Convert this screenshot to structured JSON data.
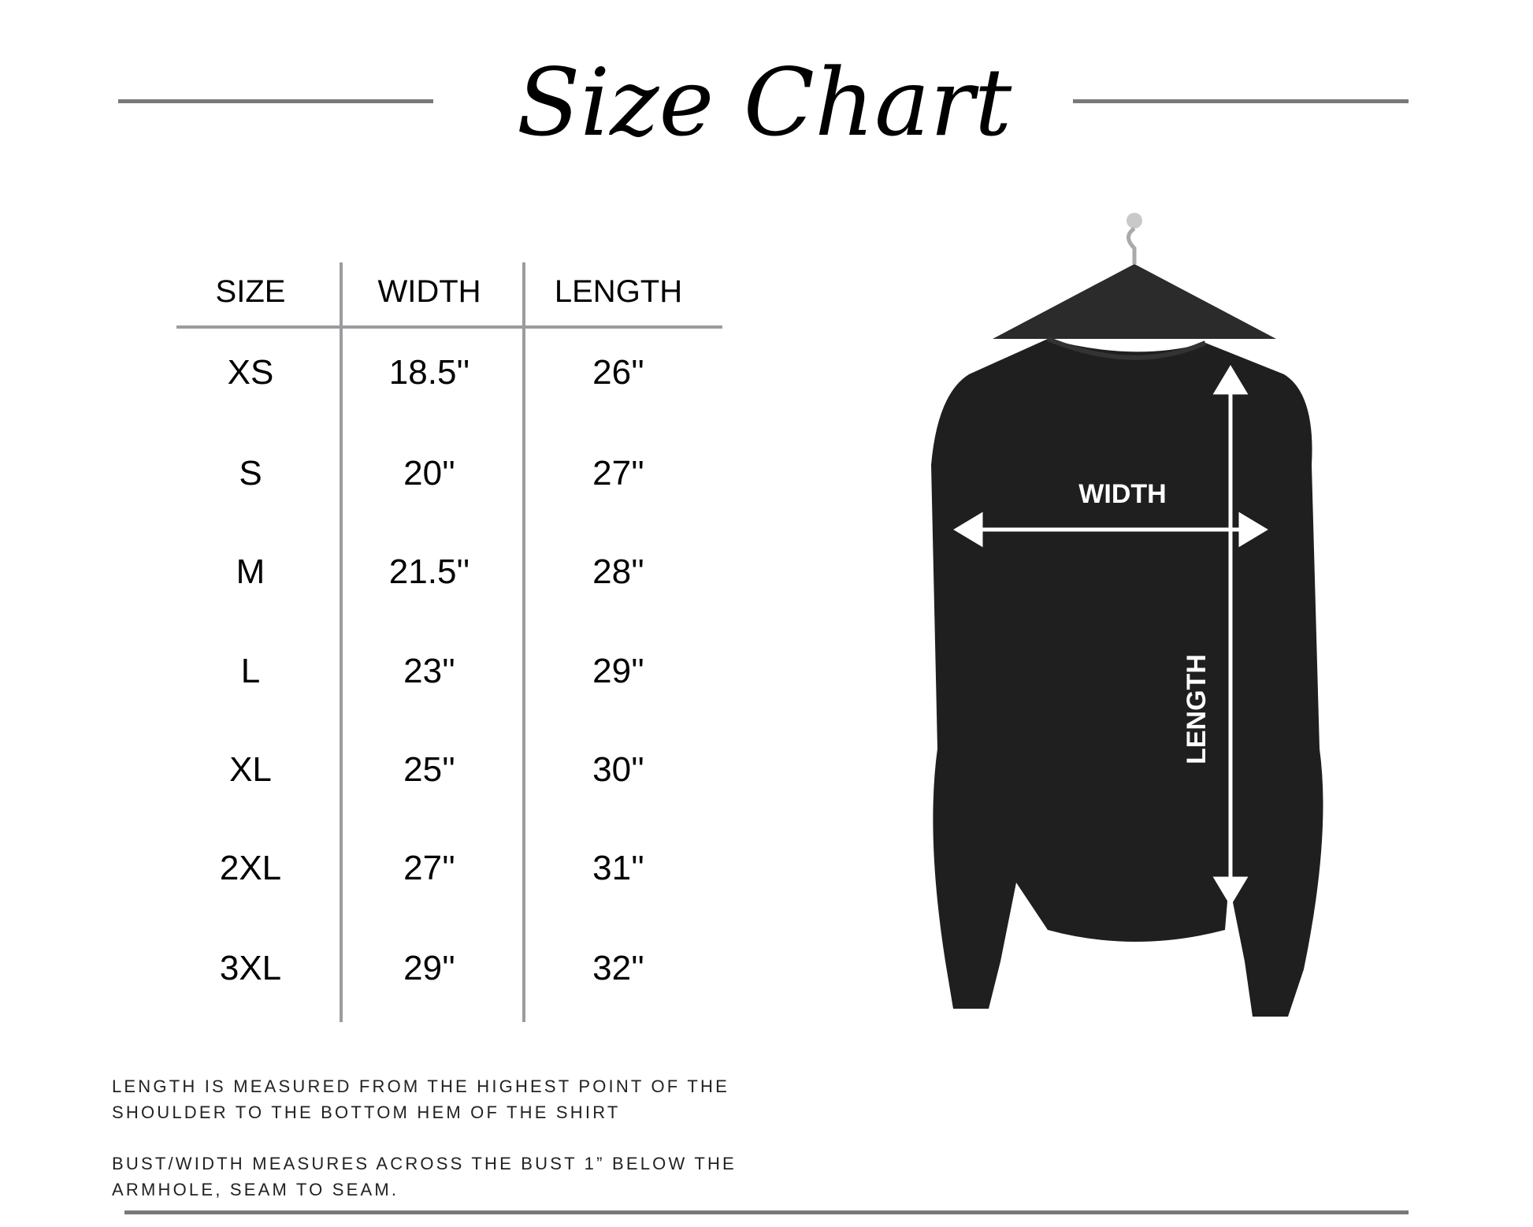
{
  "title": "Size Chart",
  "table": {
    "headers": [
      "SIZE",
      "WIDTH",
      "LENGTH"
    ],
    "rows": [
      {
        "size": "XS",
        "width": "18.5''",
        "length": "26''"
      },
      {
        "size": "S",
        "width": "20''",
        "length": "27''"
      },
      {
        "size": "M",
        "width": "21.5''",
        "length": "28''"
      },
      {
        "size": "L",
        "width": "23''",
        "length": "29''"
      },
      {
        "size": "XL",
        "width": "25''",
        "length": "30''"
      },
      {
        "size": "2XL",
        "width": "27''",
        "length": "31''"
      },
      {
        "size": "3XL",
        "width": "29''",
        "length": "32''"
      }
    ]
  },
  "diagram": {
    "width_label": "WIDTH",
    "length_label": "LENGTH",
    "garment_color": "#1f1f1f"
  },
  "notes": [
    "LENGTH IS MEASURED FROM THE HIGHEST POINT OF THE",
    "SHOULDER TO THE BOTTOM HEM OF THE SHIRT",
    "BUST/WIDTH MEASURES ACROSS THE BUST 1” BELOW THE",
    "ARMHOLE, SEAM TO SEAM."
  ]
}
